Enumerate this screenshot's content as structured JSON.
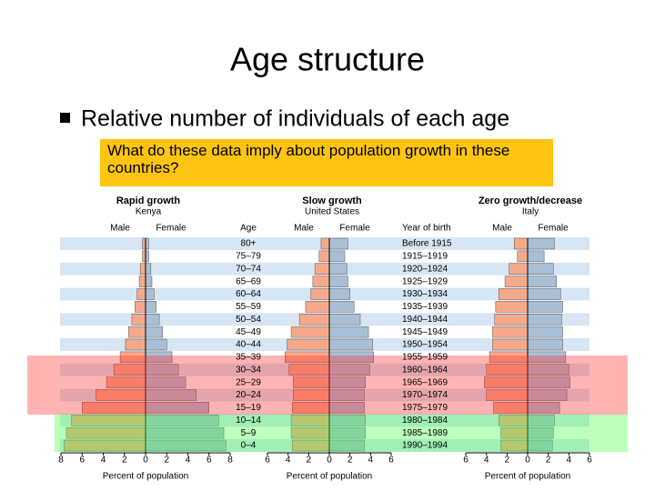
{
  "slide": {
    "title": "Age structure",
    "bullet": "Relative number of individuals of each age",
    "question": "What do these data imply about population growth in these countries?"
  },
  "chart_data": [
    {
      "type": "pyramid",
      "title": "Rapid growth",
      "subtitle": "Kenya",
      "category_label": "Age",
      "categories": [
        "80+",
        "75–79",
        "70–74",
        "65–69",
        "60–64",
        "55–59",
        "50–54",
        "45–49",
        "40–44",
        "35–39",
        "30–34",
        "25–29",
        "20–24",
        "15–19",
        "10–14",
        "5–9",
        "0–4"
      ],
      "series": [
        {
          "name": "Male",
          "color": "#f6a98a",
          "values": [
            0.3,
            0.3,
            0.5,
            0.6,
            0.8,
            1.0,
            1.3,
            1.6,
            1.9,
            2.4,
            3.0,
            3.7,
            4.7,
            6.0,
            7.0,
            7.5,
            7.7
          ]
        },
        {
          "name": "Female",
          "color": "#a9bfd6",
          "values": [
            0.3,
            0.3,
            0.5,
            0.6,
            0.8,
            1.0,
            1.3,
            1.6,
            2.0,
            2.5,
            3.1,
            3.8,
            4.8,
            6.0,
            6.9,
            7.4,
            7.6
          ]
        }
      ],
      "xlim": [
        -8,
        8
      ],
      "xticks": [
        {
          "value": -8,
          "label": "8"
        },
        {
          "value": -6,
          "label": "6"
        },
        {
          "value": -4,
          "label": "4"
        },
        {
          "value": -2,
          "label": "2"
        },
        0,
        2,
        4,
        6,
        8
      ],
      "xlabel": "Percent of population"
    },
    {
      "type": "pyramid",
      "title": "Slow growth",
      "subtitle": "United States",
      "category_label": "Year of birth",
      "categories": [
        "Before 1915",
        "1915–1919",
        "1920–1924",
        "1925–1929",
        "1930–1934",
        "1935–1939",
        "1940–1944",
        "1945–1949",
        "1950–1954",
        "1955–1959",
        "1960–1964",
        "1965–1969",
        "1970–1974",
        "1975–1979",
        "1980–1984",
        "1985–1989",
        "1990–1994"
      ],
      "series": [
        {
          "name": "Male",
          "color": "#f6a98a",
          "values": [
            0.8,
            1.0,
            1.4,
            1.6,
            1.8,
            2.3,
            2.9,
            3.7,
            4.1,
            4.3,
            3.9,
            3.5,
            3.5,
            3.6,
            3.7,
            3.7,
            3.6
          ]
        },
        {
          "name": "Female",
          "color": "#a9bfd6",
          "values": [
            1.8,
            1.5,
            1.7,
            1.8,
            2.0,
            2.4,
            3.0,
            3.8,
            4.2,
            4.3,
            3.9,
            3.5,
            3.4,
            3.4,
            3.5,
            3.5,
            3.4
          ]
        }
      ],
      "xlim": [
        -6,
        6
      ],
      "xticks": [
        {
          "value": -6,
          "label": "6"
        },
        {
          "value": -4,
          "label": "4"
        },
        {
          "value": -2,
          "label": "2"
        },
        0,
        2,
        4,
        6
      ],
      "xlabel": "Percent of population"
    },
    {
      "type": "pyramid",
      "title": "Zero growth/decrease",
      "subtitle": "Italy",
      "series": [
        {
          "name": "Male",
          "color": "#f6a98a",
          "values": [
            1.3,
            1.0,
            1.8,
            2.2,
            2.8,
            3.1,
            3.2,
            3.4,
            3.4,
            3.7,
            4.0,
            4.2,
            4.0,
            3.3,
            2.8,
            2.6,
            2.6
          ]
        },
        {
          "name": "Female",
          "color": "#a9bfd6",
          "values": [
            2.6,
            1.6,
            2.5,
            2.8,
            3.2,
            3.4,
            3.3,
            3.4,
            3.4,
            3.7,
            4.0,
            4.1,
            3.8,
            3.1,
            2.6,
            2.5,
            2.4
          ]
        }
      ],
      "xlim": [
        -6,
        6
      ],
      "xticks": [
        {
          "value": -6,
          "label": "6"
        },
        {
          "value": -4,
          "label": "4"
        },
        {
          "value": -2,
          "label": "2"
        },
        0,
        2,
        4,
        6
      ],
      "xlabel": "Percent of population"
    }
  ]
}
